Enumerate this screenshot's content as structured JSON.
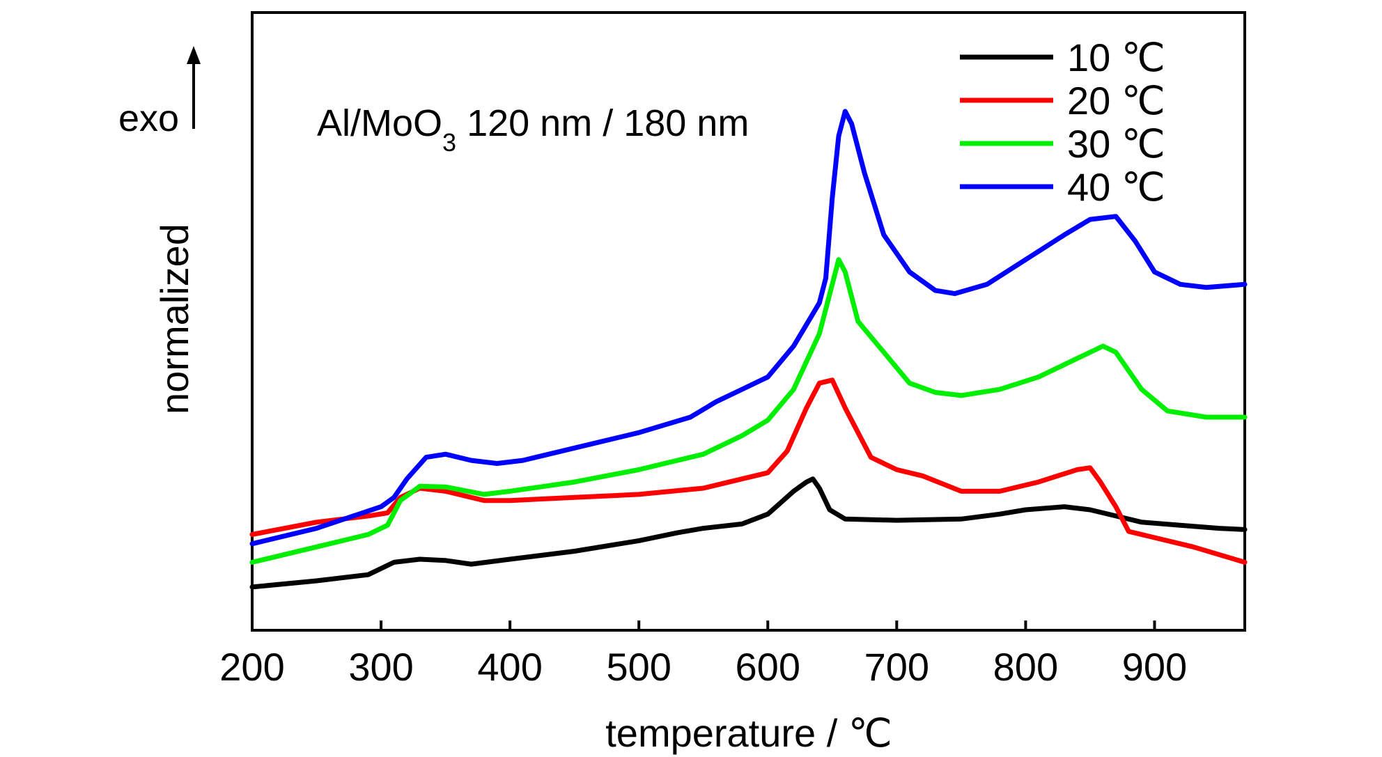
{
  "chart_data": {
    "type": "line",
    "title": "",
    "xlabel": "temperature / ℃",
    "ylabel": "normalized",
    "xlim": [
      200,
      970
    ],
    "ylim": [
      0,
      100
    ],
    "x_ticks": [
      200,
      300,
      400,
      500,
      600,
      700,
      800,
      900
    ],
    "grid": false,
    "legend": "top-right",
    "annotations": {
      "exo": "exo",
      "sample_prefix": "Al/MoO",
      "sample_subscript": "3",
      "sample_suffix": " 120 nm / 180 nm"
    },
    "series": [
      {
        "name": "10 ℃",
        "color": "#000000",
        "points": [
          [
            200,
            7
          ],
          [
            250,
            8
          ],
          [
            290,
            9
          ],
          [
            300,
            10
          ],
          [
            310,
            11
          ],
          [
            330,
            11.5
          ],
          [
            350,
            11.3
          ],
          [
            370,
            10.7
          ],
          [
            400,
            11.5
          ],
          [
            450,
            12.8
          ],
          [
            500,
            14.5
          ],
          [
            530,
            15.8
          ],
          [
            550,
            16.5
          ],
          [
            580,
            17.2
          ],
          [
            600,
            18.8
          ],
          [
            620,
            22.5
          ],
          [
            630,
            24
          ],
          [
            635,
            24.5
          ],
          [
            640,
            23
          ],
          [
            648,
            19.5
          ],
          [
            660,
            18
          ],
          [
            700,
            17.8
          ],
          [
            750,
            18
          ],
          [
            780,
            18.8
          ],
          [
            800,
            19.5
          ],
          [
            830,
            20
          ],
          [
            850,
            19.5
          ],
          [
            870,
            18.5
          ],
          [
            890,
            17.5
          ],
          [
            920,
            17
          ],
          [
            950,
            16.5
          ],
          [
            970,
            16.3
          ]
        ]
      },
      {
        "name": "20 ℃",
        "color": "#ff0000",
        "points": [
          [
            200,
            15.5
          ],
          [
            250,
            17.5
          ],
          [
            290,
            18.5
          ],
          [
            305,
            19
          ],
          [
            315,
            21.5
          ],
          [
            330,
            23
          ],
          [
            350,
            22.5
          ],
          [
            380,
            21
          ],
          [
            400,
            21
          ],
          [
            450,
            21.5
          ],
          [
            500,
            22
          ],
          [
            550,
            23
          ],
          [
            580,
            24.5
          ],
          [
            600,
            25.5
          ],
          [
            615,
            29
          ],
          [
            630,
            36
          ],
          [
            640,
            40
          ],
          [
            650,
            40.5
          ],
          [
            660,
            36
          ],
          [
            680,
            28
          ],
          [
            700,
            26
          ],
          [
            720,
            25
          ],
          [
            750,
            22.5
          ],
          [
            780,
            22.5
          ],
          [
            810,
            24
          ],
          [
            840,
            26
          ],
          [
            850,
            26.3
          ],
          [
            858,
            24
          ],
          [
            870,
            20
          ],
          [
            880,
            16
          ],
          [
            900,
            15
          ],
          [
            930,
            13.5
          ],
          [
            970,
            11
          ]
        ]
      },
      {
        "name": "30 ℃",
        "color": "#00ee00",
        "points": [
          [
            200,
            11
          ],
          [
            250,
            13.5
          ],
          [
            290,
            15.5
          ],
          [
            305,
            17
          ],
          [
            315,
            21
          ],
          [
            330,
            23.3
          ],
          [
            350,
            23.2
          ],
          [
            380,
            22
          ],
          [
            400,
            22.5
          ],
          [
            450,
            24
          ],
          [
            500,
            26
          ],
          [
            550,
            28.5
          ],
          [
            580,
            31.5
          ],
          [
            600,
            34
          ],
          [
            620,
            39
          ],
          [
            640,
            48
          ],
          [
            650,
            56
          ],
          [
            655,
            60
          ],
          [
            660,
            58
          ],
          [
            670,
            50
          ],
          [
            690,
            45
          ],
          [
            710,
            40
          ],
          [
            730,
            38.5
          ],
          [
            750,
            38
          ],
          [
            780,
            39
          ],
          [
            810,
            41
          ],
          [
            840,
            44
          ],
          [
            860,
            46
          ],
          [
            870,
            45
          ],
          [
            890,
            39
          ],
          [
            910,
            35.5
          ],
          [
            940,
            34.5
          ],
          [
            970,
            34.5
          ]
        ]
      },
      {
        "name": "40 ℃",
        "color": "#0000ff",
        "points": [
          [
            200,
            14
          ],
          [
            250,
            16.5
          ],
          [
            300,
            20
          ],
          [
            310,
            21.5
          ],
          [
            320,
            24.5
          ],
          [
            335,
            28
          ],
          [
            350,
            28.5
          ],
          [
            370,
            27.5
          ],
          [
            390,
            27
          ],
          [
            410,
            27.5
          ],
          [
            450,
            29.5
          ],
          [
            500,
            32
          ],
          [
            540,
            34.5
          ],
          [
            560,
            37
          ],
          [
            580,
            39
          ],
          [
            600,
            41
          ],
          [
            620,
            46
          ],
          [
            640,
            53
          ],
          [
            645,
            57
          ],
          [
            650,
            70
          ],
          [
            655,
            80
          ],
          [
            660,
            84
          ],
          [
            665,
            82
          ],
          [
            675,
            74
          ],
          [
            690,
            64
          ],
          [
            710,
            58
          ],
          [
            730,
            55
          ],
          [
            745,
            54.5
          ],
          [
            770,
            56
          ],
          [
            800,
            60
          ],
          [
            830,
            64
          ],
          [
            850,
            66.5
          ],
          [
            870,
            67
          ],
          [
            885,
            63
          ],
          [
            900,
            58
          ],
          [
            920,
            56
          ],
          [
            940,
            55.5
          ],
          [
            970,
            56
          ]
        ]
      }
    ]
  }
}
